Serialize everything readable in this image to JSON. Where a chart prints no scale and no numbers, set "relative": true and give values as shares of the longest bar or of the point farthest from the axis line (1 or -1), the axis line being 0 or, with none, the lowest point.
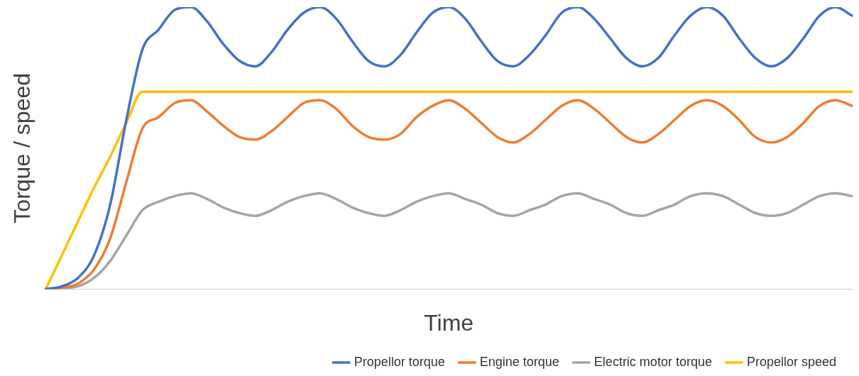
{
  "chart_data": {
    "type": "line",
    "relative": true,
    "xlabel": "Time",
    "ylabel": "Torque / speed",
    "legend": "bottom",
    "grid": false,
    "marker": "none",
    "line_style": "solid",
    "tick_labels": false,
    "categories": [
      null,
      null,
      null,
      null,
      null,
      null,
      null,
      null,
      null,
      null,
      null,
      null,
      null,
      null,
      null,
      null,
      null,
      null,
      null,
      null,
      null,
      null,
      null,
      null,
      null,
      null,
      null,
      null,
      null,
      null,
      null,
      null,
      null,
      null,
      null,
      null,
      null,
      null,
      null,
      null,
      null,
      null,
      null,
      null,
      null,
      null,
      null,
      null,
      null,
      null,
      null
    ],
    "series": [
      {
        "name": "Propellor torque",
        "color": "#4472c4",
        "values": [
          0,
          0.01,
          0.04,
          0.12,
          0.3,
          0.6,
          0.85,
          0.92,
          0.99,
          1.0,
          0.95,
          0.87,
          0.81,
          0.79,
          0.84,
          0.92,
          0.98,
          1.0,
          0.96,
          0.88,
          0.81,
          0.79,
          0.83,
          0.91,
          0.98,
          1.0,
          0.96,
          0.88,
          0.81,
          0.79,
          0.83,
          0.9,
          0.98,
          1.0,
          0.96,
          0.89,
          0.82,
          0.79,
          0.82,
          0.9,
          0.97,
          1.0,
          0.97,
          0.89,
          0.82,
          0.79,
          0.82,
          0.89,
          0.97,
          1.0,
          0.97
        ]
      },
      {
        "name": "Engine torque",
        "color": "#ed7d31",
        "values": [
          0,
          0.005,
          0.02,
          0.07,
          0.18,
          0.38,
          0.57,
          0.61,
          0.66,
          0.67,
          0.63,
          0.58,
          0.54,
          0.53,
          0.56,
          0.61,
          0.66,
          0.67,
          0.64,
          0.58,
          0.54,
          0.53,
          0.55,
          0.61,
          0.65,
          0.67,
          0.64,
          0.59,
          0.54,
          0.52,
          0.55,
          0.6,
          0.65,
          0.67,
          0.64,
          0.59,
          0.54,
          0.52,
          0.55,
          0.6,
          0.65,
          0.67,
          0.65,
          0.6,
          0.54,
          0.52,
          0.54,
          0.59,
          0.65,
          0.67,
          0.65
        ]
      },
      {
        "name": "Electric motor torque",
        "color": "#a5a5a5",
        "values": [
          0,
          0.003,
          0.01,
          0.04,
          0.1,
          0.19,
          0.28,
          0.31,
          0.33,
          0.34,
          0.32,
          0.29,
          0.27,
          0.26,
          0.28,
          0.31,
          0.33,
          0.34,
          0.32,
          0.29,
          0.27,
          0.26,
          0.28,
          0.31,
          0.33,
          0.34,
          0.32,
          0.3,
          0.27,
          0.26,
          0.28,
          0.3,
          0.33,
          0.34,
          0.32,
          0.3,
          0.27,
          0.26,
          0.28,
          0.3,
          0.33,
          0.34,
          0.33,
          0.3,
          0.27,
          0.26,
          0.27,
          0.3,
          0.33,
          0.34,
          0.33
        ]
      },
      {
        "name": "Propellor speed",
        "color": "#ffc000",
        "values": [
          0,
          0.12,
          0.24,
          0.36,
          0.47,
          0.59,
          0.7,
          0.7,
          0.7,
          0.7,
          0.7,
          0.7,
          0.7,
          0.7,
          0.7,
          0.7,
          0.7,
          0.7,
          0.7,
          0.7,
          0.7,
          0.7,
          0.7,
          0.7,
          0.7,
          0.7,
          0.7,
          0.7,
          0.7,
          0.7,
          0.7,
          0.7,
          0.7,
          0.7,
          0.7,
          0.7,
          0.7,
          0.7,
          0.7,
          0.7,
          0.7,
          0.7,
          0.7,
          0.7,
          0.7,
          0.7,
          0.7,
          0.7,
          0.7,
          0.7,
          0.7
        ]
      }
    ]
  }
}
